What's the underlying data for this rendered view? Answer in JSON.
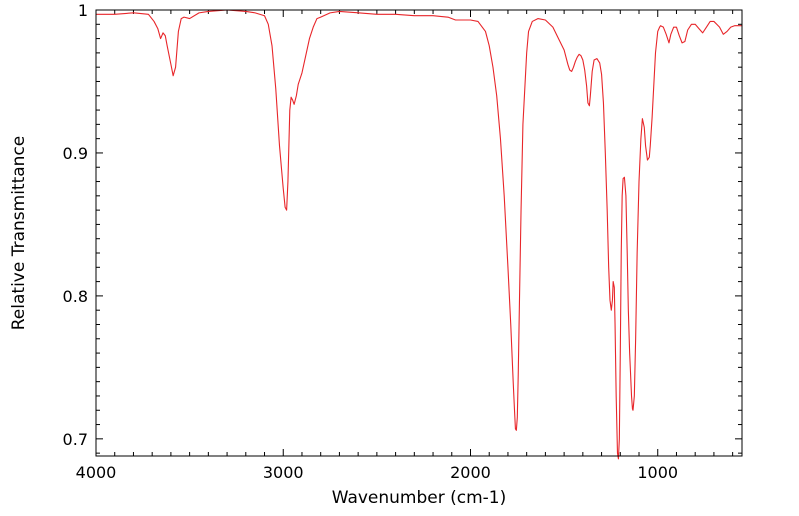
{
  "chart_data": {
    "type": "line",
    "title": "",
    "xlabel": "Wavenumber (cm-1)",
    "ylabel": "Relative Transmittance",
    "xlim": [
      4000,
      550
    ],
    "ylim": [
      0.688,
      1.0
    ],
    "x_reversed": true,
    "grid": false,
    "legend": "none",
    "x_ticks": [
      {
        "value": 4000,
        "label": "4000"
      },
      {
        "value": 3000,
        "label": "3000"
      },
      {
        "value": 2000,
        "label": "2000"
      },
      {
        "value": 1000,
        "label": "1000"
      }
    ],
    "y_ticks": [
      {
        "value": 1.0,
        "label": "1"
      },
      {
        "value": 0.9,
        "label": "0.9"
      },
      {
        "value": 0.8,
        "label": "0.8"
      },
      {
        "value": 0.7,
        "label": "0.7"
      }
    ],
    "series": [
      {
        "color": "#e8262a",
        "x": [
          4000,
          3900,
          3800,
          3720,
          3690,
          3670,
          3655,
          3642,
          3630,
          3620,
          3600,
          3588,
          3575,
          3560,
          3545,
          3530,
          3500,
          3450,
          3400,
          3300,
          3200,
          3150,
          3100,
          3080,
          3060,
          3050,
          3040,
          3030,
          3020,
          3010,
          3000,
          2990,
          2982,
          2975,
          2965,
          2958,
          2950,
          2942,
          2930,
          2920,
          2910,
          2900,
          2880,
          2860,
          2840,
          2820,
          2800,
          2750,
          2700,
          2600,
          2500,
          2400,
          2300,
          2200,
          2120,
          2080,
          2000,
          1960,
          1920,
          1900,
          1880,
          1860,
          1840,
          1820,
          1800,
          1785,
          1772,
          1765,
          1760,
          1755,
          1750,
          1745,
          1738,
          1730,
          1720,
          1700,
          1690,
          1670,
          1640,
          1600,
          1560,
          1530,
          1500,
          1480,
          1470,
          1460,
          1450,
          1440,
          1430,
          1420,
          1410,
          1400,
          1390,
          1380,
          1373,
          1365,
          1360,
          1350,
          1340,
          1325,
          1310,
          1300,
          1290,
          1280,
          1270,
          1262,
          1255,
          1248,
          1242,
          1238,
          1232,
          1228,
          1222,
          1215,
          1210,
          1205,
          1200,
          1195,
          1190,
          1185,
          1178,
          1170,
          1163,
          1157,
          1150,
          1145,
          1140,
          1135,
          1132,
          1125,
          1118,
          1110,
          1100,
          1090,
          1082,
          1072,
          1065,
          1055,
          1045,
          1040,
          1030,
          1020,
          1012,
          1000,
          990,
          985,
          970,
          955,
          940,
          930,
          915,
          900,
          885,
          870,
          855,
          840,
          820,
          800,
          780,
          760,
          740,
          720,
          700,
          685,
          670,
          650,
          630,
          610,
          590,
          570,
          550
        ],
        "y": [
          0.997,
          0.997,
          0.998,
          0.997,
          0.992,
          0.987,
          0.98,
          0.984,
          0.982,
          0.975,
          0.962,
          0.954,
          0.96,
          0.985,
          0.994,
          0.995,
          0.994,
          0.998,
          0.999,
          1.0,
          0.999,
          0.998,
          0.996,
          0.99,
          0.975,
          0.96,
          0.945,
          0.925,
          0.905,
          0.89,
          0.875,
          0.862,
          0.86,
          0.88,
          0.93,
          0.939,
          0.937,
          0.934,
          0.94,
          0.948,
          0.952,
          0.956,
          0.968,
          0.98,
          0.988,
          0.994,
          0.995,
          0.998,
          0.999,
          0.998,
          0.997,
          0.997,
          0.996,
          0.996,
          0.995,
          0.993,
          0.993,
          0.992,
          0.985,
          0.975,
          0.96,
          0.94,
          0.91,
          0.87,
          0.82,
          0.78,
          0.74,
          0.72,
          0.707,
          0.706,
          0.715,
          0.745,
          0.8,
          0.86,
          0.92,
          0.97,
          0.985,
          0.992,
          0.994,
          0.993,
          0.988,
          0.98,
          0.972,
          0.962,
          0.958,
          0.957,
          0.96,
          0.964,
          0.967,
          0.969,
          0.968,
          0.965,
          0.958,
          0.947,
          0.935,
          0.933,
          0.94,
          0.957,
          0.965,
          0.966,
          0.963,
          0.955,
          0.935,
          0.9,
          0.86,
          0.82,
          0.797,
          0.79,
          0.797,
          0.81,
          0.806,
          0.78,
          0.73,
          0.69,
          0.686,
          0.7,
          0.76,
          0.83,
          0.87,
          0.882,
          0.883,
          0.87,
          0.83,
          0.79,
          0.76,
          0.745,
          0.73,
          0.721,
          0.72,
          0.73,
          0.77,
          0.83,
          0.88,
          0.91,
          0.924,
          0.918,
          0.905,
          0.895,
          0.897,
          0.905,
          0.925,
          0.95,
          0.97,
          0.985,
          0.988,
          0.989,
          0.988,
          0.983,
          0.977,
          0.983,
          0.988,
          0.988,
          0.982,
          0.977,
          0.978,
          0.986,
          0.99,
          0.99,
          0.987,
          0.984,
          0.988,
          0.992,
          0.992,
          0.99,
          0.988,
          0.983,
          0.985,
          0.988,
          0.989,
          0.989,
          0.989
        ]
      }
    ]
  }
}
